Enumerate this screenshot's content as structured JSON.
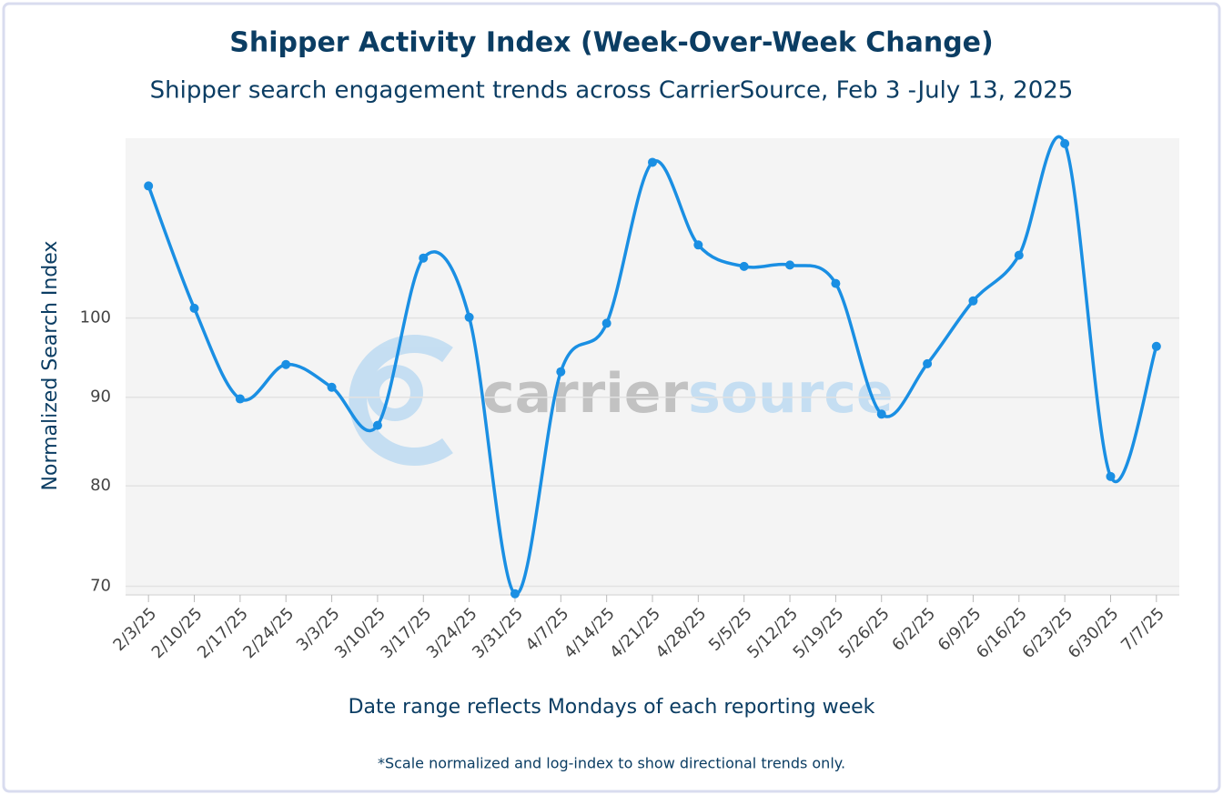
{
  "chart_data": {
    "type": "line",
    "title": "Shipper Activity Index (Week-Over-Week Change)",
    "subtitle": "Shipper search engagement trends across CarrierSource, Feb 3 -July 13, 2025",
    "x_label": "Date range reflects Mondays of each reporting week",
    "y_label": "Normalized Search Index",
    "footnote": "*Scale normalized and log-index to show directional trends only.",
    "watermark": {
      "primary": "carrier",
      "secondary": "source"
    },
    "categories": [
      "2/3/25",
      "2/10/25",
      "2/17/25",
      "2/24/25",
      "3/3/25",
      "3/10/25",
      "3/17/25",
      "3/24/25",
      "3/31/25",
      "4/7/25",
      "4/14/25",
      "4/21/25",
      "4/28/25",
      "5/5/25",
      "5/12/25",
      "5/19/25",
      "5/26/25",
      "6/2/25",
      "6/9/25",
      "6/16/25",
      "6/23/25",
      "6/30/25",
      "7/7/25"
    ],
    "values": [
      119.2,
      101.3,
      89.8,
      94.0,
      91.2,
      86.7,
      108.3,
      100.1,
      69.3,
      93.1,
      99.3,
      123.0,
      110.2,
      107.1,
      107.3,
      104.7,
      88.0,
      94.1,
      102.3,
      108.7,
      126.1,
      81.0,
      96.3
    ],
    "color": "#1a8fe3",
    "ylim": [
      69.2,
      127
    ],
    "yticks": [
      70,
      80,
      90,
      100
    ],
    "log_y": true,
    "grid": true,
    "smooth": true
  }
}
